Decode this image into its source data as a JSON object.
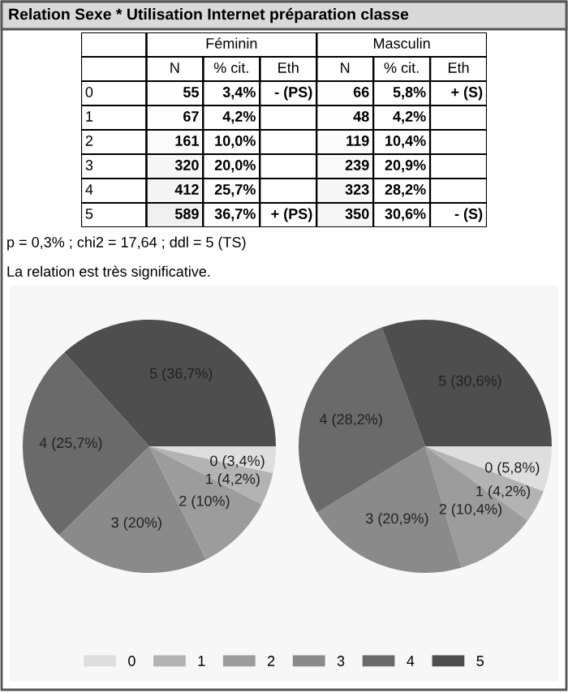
{
  "chart_data": [
    {
      "type": "heatmap",
      "title": "Relation Sexe * Utilisation Internet préparation classe",
      "categories": [
        "N",
        "% cit.",
        "Eth",
        "N",
        "% cit.",
        "Eth"
      ],
      "y_categories": [
        "0",
        "1",
        "2",
        "3",
        "4",
        "5"
      ],
      "cells": [
        [
          55,
          3.4,
          null,
          66,
          5.8,
          null
        ],
        [
          67,
          4.2,
          null,
          48,
          4.2,
          null
        ],
        [
          161,
          10.0,
          null,
          119,
          10.4,
          null
        ],
        [
          320,
          20.0,
          null,
          239,
          20.9,
          null
        ],
        [
          412,
          25.7,
          null,
          323,
          28.2,
          null
        ],
        [
          589,
          36.7,
          null,
          350,
          30.6,
          null
        ]
      ],
      "cell_labels": [
        [
          "55",
          "3,4%",
          "- (PS)",
          "66",
          "5,8%",
          "+ (S)"
        ],
        [
          "67",
          "4,2%",
          null,
          "48",
          "4,2%",
          null
        ],
        [
          "161",
          "10,0%",
          null,
          "119",
          "10,4%",
          null
        ],
        [
          "320",
          "20,0%",
          null,
          "239",
          "20,9%",
          null
        ],
        [
          "412",
          "25,7%",
          null,
          "323",
          "28,2%",
          null
        ],
        [
          "589",
          "36,7%",
          "+ (PS)",
          "350",
          "30,6%",
          "- (S)"
        ]
      ],
      "annotations": [
        "Féminin",
        "Masculin",
        "p = 0,3% ; chi2 = 17,64 ; ddl = 5 (TS)",
        "La relation est très significative."
      ]
    },
    {
      "type": "pie",
      "categories": [
        "0",
        "1",
        "2",
        "3",
        "4",
        "5"
      ],
      "values": [
        3.4,
        4.2,
        10.0,
        20.0,
        25.7,
        36.7
      ],
      "value_labels": [
        "0 (3,4%)",
        "1 (4,2%)",
        "2 (10%)",
        "3 (20%)",
        "4 (25,7%)",
        "5 (36,7%)"
      ],
      "colors": [
        "#dedede",
        "#b3b3b3",
        "#9c9c9c",
        "#8a8a8a",
        "#6a6a6a",
        "#4e4e4e"
      ],
      "legend": "bottom"
    },
    {
      "type": "pie",
      "categories": [
        null,
        null,
        null,
        null,
        null,
        null
      ],
      "values": [
        5.8,
        4.2,
        10.4,
        20.9,
        28.2,
        30.6
      ],
      "value_labels": [
        "0 (5,8%)",
        "1 (4,2%)",
        "2 (10,4%)",
        "3 (20,9%)",
        "4 (28,2%)",
        "5 (30,6%)"
      ],
      "colors": [
        "#dedede",
        "#b3b3b3",
        "#9c9c9c",
        "#8a8a8a",
        "#6a6a6a",
        "#4e4e4e"
      ]
    }
  ]
}
